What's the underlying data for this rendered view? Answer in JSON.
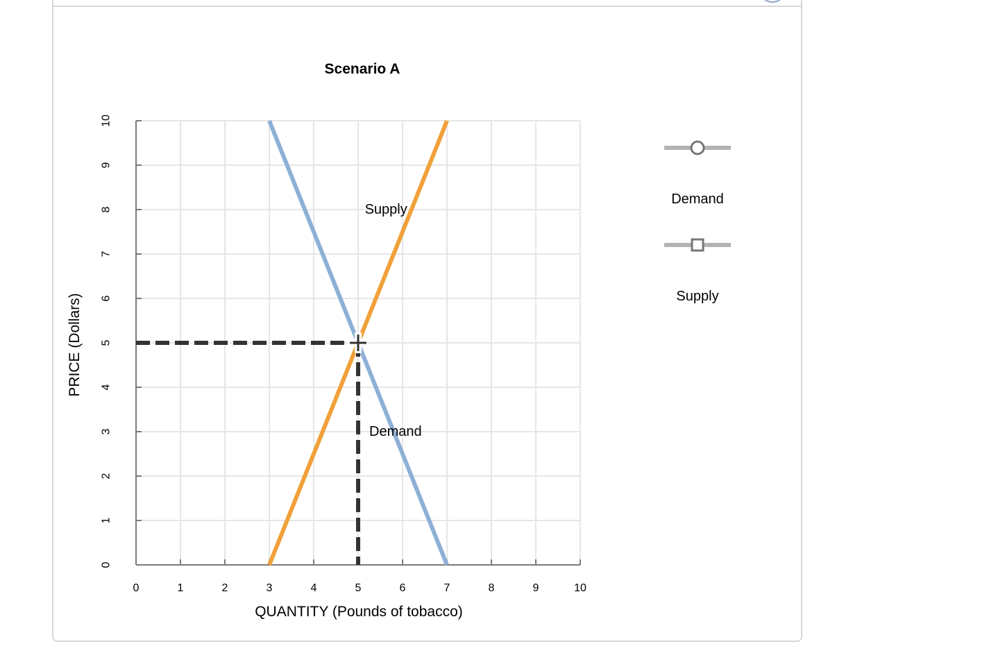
{
  "chart_data": {
    "type": "line",
    "title": "Scenario A",
    "xlabel": "QUANTITY (Pounds of tobacco)",
    "ylabel": "PRICE (Dollars)",
    "xlim": [
      0,
      10
    ],
    "ylim": [
      0,
      10
    ],
    "xticks": [
      "0",
      "1",
      "2",
      "3",
      "4",
      "5",
      "6",
      "7",
      "8",
      "9",
      "10"
    ],
    "yticks": [
      "0",
      "1",
      "2",
      "3",
      "4",
      "5",
      "6",
      "7",
      "8",
      "9",
      "10"
    ],
    "grid": true,
    "legend_position": "right",
    "series": [
      {
        "name": "Demand",
        "color": "#8eb0d6",
        "marker": "circle",
        "x": [
          3,
          7
        ],
        "y": [
          10,
          0
        ],
        "label": "Demand",
        "label_at": [
          5.25,
          3
        ]
      },
      {
        "name": "Supply",
        "color": "#f0a13b",
        "marker": "square",
        "x": [
          3,
          7
        ],
        "y": [
          0,
          10
        ],
        "label": "Supply",
        "label_at": [
          5.15,
          8
        ]
      }
    ],
    "equilibrium": {
      "x": 5,
      "y": 5,
      "marker": "cross",
      "guide_color": "#333333"
    },
    "legend": [
      {
        "name": "Demand",
        "marker": "circle",
        "line_color": "#b3b3b3",
        "marker_color": "#777777"
      },
      {
        "name": "Supply",
        "marker": "square",
        "line_color": "#b3b3b3",
        "marker_color": "#777777"
      }
    ]
  }
}
